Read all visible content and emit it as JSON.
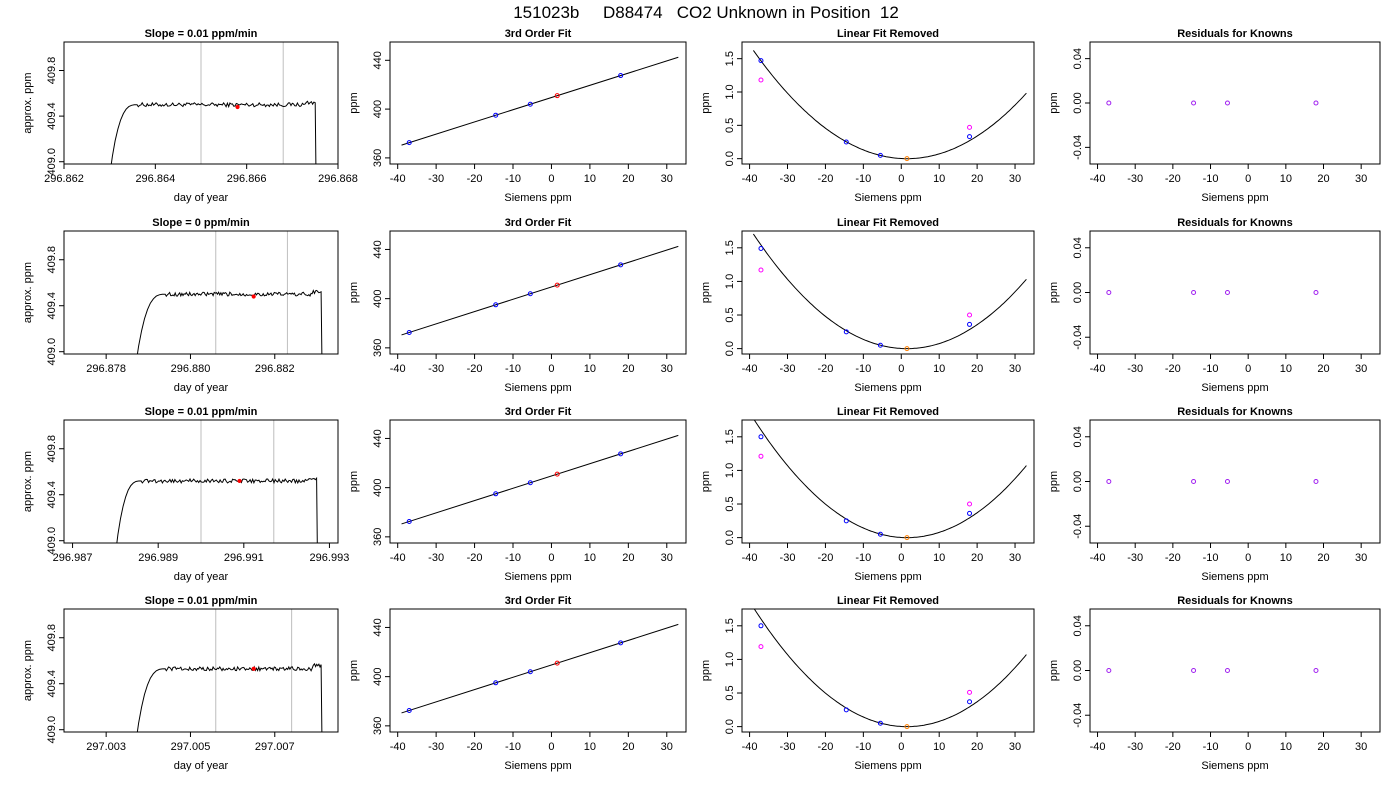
{
  "page_title": "151023b     D88474   CO2 Unknown in Position  12",
  "colors": {
    "trace": "#000000",
    "guide": "#bebebe",
    "marker": "#ff0000",
    "known_point": "#0000ff",
    "residual_point": "#a020f0",
    "raw_point": "#ff00ff",
    "unknown_point": "#ff7f00"
  },
  "chart_data": [
    {
      "type": "line",
      "panel": "trace",
      "row": 0,
      "title": "Slope =  0.01  ppm/min",
      "xlabel": "day of year",
      "ylabel": "approx. ppm",
      "xlim": [
        296.862,
        296.868
      ],
      "ylim": [
        408.98,
        410.05
      ],
      "xticks": [
        "296.862",
        "296.864",
        "296.866",
        "296.868"
      ],
      "yticks": [
        "409.0",
        "409.4",
        "409.8"
      ],
      "trace": {
        "start": 296.863,
        "rise_end": 296.8636,
        "end": 296.8675,
        "plateau": 409.5,
        "top_edge": 409.52
      },
      "vlines": [
        296.865,
        296.8668
      ],
      "marker": {
        "x": 296.8658,
        "y": 409.48
      }
    },
    {
      "type": "line",
      "panel": "fit",
      "row": 0,
      "title": "3rd Order Fit",
      "xlabel": "Siemens ppm",
      "ylabel": "ppm",
      "xlim": [
        -42,
        35
      ],
      "ylim": [
        355,
        455
      ],
      "xticks": [
        "-40",
        "-30",
        "-20",
        "-10",
        "0",
        "10",
        "20",
        "30"
      ],
      "yticks": [
        "360",
        "400",
        "440"
      ],
      "line": {
        "slope": 1.0,
        "intercept": 409.5
      },
      "knowns": [
        [
          -37,
          372.5
        ],
        [
          -14.5,
          395
        ],
        [
          -5.5,
          404
        ],
        [
          18,
          427.5
        ]
      ],
      "unknown": [
        1.5,
        411
      ]
    },
    {
      "type": "scatter",
      "panel": "linear_removed",
      "row": 0,
      "title": "Linear Fit Removed",
      "xlabel": "Siemens ppm",
      "ylabel": "ppm",
      "xlim": [
        -42,
        35
      ],
      "ylim": [
        -0.08,
        1.75
      ],
      "xticks": [
        "-40",
        "-30",
        "-20",
        "-10",
        "0",
        "10",
        "20",
        "30"
      ],
      "yticks": [
        "0.0",
        "0.5",
        "1.0",
        "1.5"
      ],
      "curve": {
        "vertex_x": 1.5,
        "scale": 0.00099
      },
      "knowns": [
        [
          -37,
          1.47
        ],
        [
          -14.5,
          0.25
        ],
        [
          -5.5,
          0.05
        ],
        [
          18,
          0.33
        ]
      ],
      "raw": [
        [
          -37,
          1.18
        ],
        [
          18,
          0.47
        ]
      ],
      "unknown": [
        1.5,
        0.0
      ]
    },
    {
      "type": "scatter",
      "panel": "residuals",
      "row": 0,
      "title": "Residuals for Knowns",
      "xlabel": "Siemens ppm",
      "ylabel": "ppm",
      "xlim": [
        -42,
        35
      ],
      "ylim": [
        -0.055,
        0.055
      ],
      "xticks": [
        "-40",
        "-30",
        "-20",
        "-10",
        "0",
        "10",
        "20",
        "30"
      ],
      "yticks": [
        "-0.04",
        "0.00",
        "0.04"
      ],
      "points": [
        [
          -37,
          0
        ],
        [
          -14.5,
          0
        ],
        [
          -5.5,
          0
        ],
        [
          18,
          0
        ]
      ]
    },
    {
      "type": "line",
      "panel": "trace",
      "row": 1,
      "title": "Slope =  0  ppm/min",
      "xlabel": "day of year",
      "ylabel": "approx. ppm",
      "xlim": [
        296.877,
        296.8835
      ],
      "ylim": [
        408.98,
        410.05
      ],
      "xticks": [
        "296.878",
        "296.880",
        "296.882"
      ],
      "yticks": [
        "409.0",
        "409.4",
        "409.8"
      ],
      "trace": {
        "start": 296.8787,
        "rise_end": 296.8794,
        "end": 296.8831,
        "plateau": 409.5,
        "top_edge": 409.52
      },
      "vlines": [
        296.8806,
        296.8823
      ],
      "marker": {
        "x": 296.8815,
        "y": 409.48
      }
    },
    {
      "type": "line",
      "panel": "fit",
      "row": 1,
      "title": "3rd Order Fit",
      "xlabel": "Siemens ppm",
      "ylabel": "ppm",
      "xlim": [
        -42,
        35
      ],
      "ylim": [
        355,
        455
      ],
      "xticks": [
        "-40",
        "-30",
        "-20",
        "-10",
        "0",
        "10",
        "20",
        "30"
      ],
      "yticks": [
        "360",
        "400",
        "440"
      ],
      "line": {
        "slope": 1.0,
        "intercept": 409.5
      },
      "knowns": [
        [
          -37,
          372.5
        ],
        [
          -14.5,
          395
        ],
        [
          -5.5,
          404
        ],
        [
          18,
          427.5
        ]
      ],
      "unknown": [
        1.5,
        411
      ]
    },
    {
      "type": "scatter",
      "panel": "linear_removed",
      "row": 1,
      "title": "Linear Fit Removed",
      "xlabel": "Siemens ppm",
      "ylabel": "ppm",
      "xlim": [
        -42,
        35
      ],
      "ylim": [
        -0.08,
        1.75
      ],
      "xticks": [
        "-40",
        "-30",
        "-20",
        "-10",
        "0",
        "10",
        "20",
        "30"
      ],
      "yticks": [
        "0.0",
        "0.5",
        "1.0",
        "1.5"
      ],
      "curve": {
        "vertex_x": 1.5,
        "scale": 0.00104
      },
      "knowns": [
        [
          -37,
          1.49
        ],
        [
          -14.5,
          0.25
        ],
        [
          -5.5,
          0.05
        ],
        [
          18,
          0.36
        ]
      ],
      "raw": [
        [
          -37,
          1.17
        ],
        [
          18,
          0.5
        ]
      ],
      "unknown": [
        1.5,
        0.0
      ]
    },
    {
      "type": "scatter",
      "panel": "residuals",
      "row": 1,
      "title": "Residuals for Knowns",
      "xlabel": "Siemens ppm",
      "ylabel": "ppm",
      "xlim": [
        -42,
        35
      ],
      "ylim": [
        -0.055,
        0.055
      ],
      "xticks": [
        "-40",
        "-30",
        "-20",
        "-10",
        "0",
        "10",
        "20",
        "30"
      ],
      "yticks": [
        "-0.04",
        "0.00",
        "0.04"
      ],
      "points": [
        [
          -37,
          0
        ],
        [
          -14.5,
          0
        ],
        [
          -5.5,
          0
        ],
        [
          18,
          0
        ]
      ]
    },
    {
      "type": "line",
      "panel": "trace",
      "row": 2,
      "title": "Slope =  0.01  ppm/min",
      "xlabel": "day of year",
      "ylabel": "approx. ppm",
      "xlim": [
        296.9868,
        296.9932
      ],
      "ylim": [
        408.98,
        410.05
      ],
      "xticks": [
        "296.987",
        "296.989",
        "296.991",
        "296.993"
      ],
      "yticks": [
        "409.0",
        "409.4",
        "409.8"
      ],
      "trace": {
        "start": 296.988,
        "rise_end": 296.9886,
        "end": 296.9927,
        "plateau": 409.52,
        "top_edge": 409.54
      },
      "vlines": [
        296.99,
        296.9917
      ],
      "marker": {
        "x": 296.9909,
        "y": 409.52
      }
    },
    {
      "type": "line",
      "panel": "fit",
      "row": 2,
      "title": "3rd Order Fit",
      "xlabel": "Siemens ppm",
      "ylabel": "ppm",
      "xlim": [
        -42,
        35
      ],
      "ylim": [
        355,
        455
      ],
      "xticks": [
        "-40",
        "-30",
        "-20",
        "-10",
        "0",
        "10",
        "20",
        "30"
      ],
      "yticks": [
        "360",
        "400",
        "440"
      ],
      "line": {
        "slope": 1.0,
        "intercept": 409.5
      },
      "knowns": [
        [
          -37,
          372.5
        ],
        [
          -14.5,
          395
        ],
        [
          -5.5,
          404
        ],
        [
          18,
          427.5
        ]
      ],
      "unknown": [
        1.5,
        411
      ]
    },
    {
      "type": "scatter",
      "panel": "linear_removed",
      "row": 2,
      "title": "Linear Fit Removed",
      "xlabel": "Siemens ppm",
      "ylabel": "ppm",
      "xlim": [
        -42,
        35
      ],
      "ylim": [
        -0.08,
        1.75
      ],
      "xticks": [
        "-40",
        "-30",
        "-20",
        "-10",
        "0",
        "10",
        "20",
        "30"
      ],
      "yticks": [
        "0.0",
        "0.5",
        "1.0",
        "1.5"
      ],
      "curve": {
        "vertex_x": 1.5,
        "scale": 0.00108
      },
      "knowns": [
        [
          -37,
          1.5
        ],
        [
          -14.5,
          0.25
        ],
        [
          -5.5,
          0.05
        ],
        [
          18,
          0.36
        ]
      ],
      "raw": [
        [
          -37,
          1.21
        ],
        [
          18,
          0.5
        ]
      ],
      "unknown": [
        1.5,
        0.0
      ]
    },
    {
      "type": "scatter",
      "panel": "residuals",
      "row": 2,
      "title": "Residuals for Knowns",
      "xlabel": "Siemens ppm",
      "ylabel": "ppm",
      "xlim": [
        -42,
        35
      ],
      "ylim": [
        -0.055,
        0.055
      ],
      "xticks": [
        "-40",
        "-30",
        "-20",
        "-10",
        "0",
        "10",
        "20",
        "30"
      ],
      "yticks": [
        "-0.04",
        "0.00",
        "0.04"
      ],
      "points": [
        [
          -37,
          0
        ],
        [
          -14.5,
          0
        ],
        [
          -5.5,
          0
        ],
        [
          18,
          0
        ]
      ]
    },
    {
      "type": "line",
      "panel": "trace",
      "row": 3,
      "title": "Slope =  0.01  ppm/min",
      "xlabel": "day of year",
      "ylabel": "approx. ppm",
      "xlim": [
        297.002,
        297.0085
      ],
      "ylim": [
        408.98,
        410.05
      ],
      "xticks": [
        "297.003",
        "297.005",
        "297.007"
      ],
      "yticks": [
        "409.0",
        "409.4",
        "409.8"
      ],
      "trace": {
        "start": 297.0037,
        "rise_end": 297.0044,
        "end": 297.0081,
        "plateau": 409.53,
        "top_edge": 409.56
      },
      "vlines": [
        297.0056,
        297.0074
      ],
      "marker": {
        "x": 297.0065,
        "y": 409.53
      }
    },
    {
      "type": "line",
      "panel": "fit",
      "row": 3,
      "title": "3rd Order Fit",
      "xlabel": "Siemens ppm",
      "ylabel": "ppm",
      "xlim": [
        -42,
        35
      ],
      "ylim": [
        355,
        455
      ],
      "xticks": [
        "-40",
        "-30",
        "-20",
        "-10",
        "0",
        "10",
        "20",
        "30"
      ],
      "yticks": [
        "360",
        "400",
        "440"
      ],
      "line": {
        "slope": 1.0,
        "intercept": 409.5
      },
      "knowns": [
        [
          -37,
          372.5
        ],
        [
          -14.5,
          395
        ],
        [
          -5.5,
          404
        ],
        [
          18,
          427.5
        ]
      ],
      "unknown": [
        1.5,
        411
      ]
    },
    {
      "type": "scatter",
      "panel": "linear_removed",
      "row": 3,
      "title": "Linear Fit Removed",
      "xlabel": "Siemens ppm",
      "ylabel": "ppm",
      "xlim": [
        -42,
        35
      ],
      "ylim": [
        -0.08,
        1.75
      ],
      "xticks": [
        "-40",
        "-30",
        "-20",
        "-10",
        "0",
        "10",
        "20",
        "30"
      ],
      "yticks": [
        "0.0",
        "0.5",
        "1.0",
        "1.5"
      ],
      "curve": {
        "vertex_x": 1.5,
        "scale": 0.00108
      },
      "knowns": [
        [
          -37,
          1.5
        ],
        [
          -14.5,
          0.25
        ],
        [
          -5.5,
          0.05
        ],
        [
          18,
          0.37
        ]
      ],
      "raw": [
        [
          -37,
          1.19
        ],
        [
          18,
          0.51
        ]
      ],
      "unknown": [
        1.5,
        0.0
      ]
    },
    {
      "type": "scatter",
      "panel": "residuals",
      "row": 3,
      "title": "Residuals for Knowns",
      "xlabel": "Siemens ppm",
      "ylabel": "ppm",
      "xlim": [
        -42,
        35
      ],
      "ylim": [
        -0.055,
        0.055
      ],
      "xticks": [
        "-40",
        "-30",
        "-20",
        "-10",
        "0",
        "10",
        "20",
        "30"
      ],
      "yticks": [
        "-0.04",
        "0.00",
        "0.04"
      ],
      "points": [
        [
          -37,
          0
        ],
        [
          -14.5,
          0
        ],
        [
          -5.5,
          0
        ],
        [
          18,
          0
        ]
      ]
    }
  ]
}
